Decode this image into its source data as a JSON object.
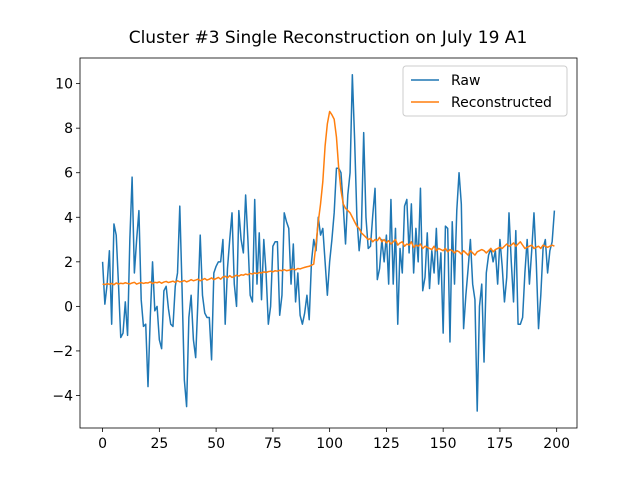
{
  "chart_data": {
    "type": "line",
    "title": "Cluster #3 Single Reconstruction on July 19 A1",
    "x": [
      0,
      1,
      2,
      3,
      4,
      5,
      6,
      7,
      8,
      9,
      10,
      11,
      12,
      13,
      14,
      15,
      16,
      17,
      18,
      19,
      20,
      21,
      22,
      23,
      24,
      25,
      26,
      27,
      28,
      29,
      30,
      31,
      32,
      33,
      34,
      35,
      36,
      37,
      38,
      39,
      40,
      41,
      42,
      43,
      44,
      45,
      46,
      47,
      48,
      49,
      50,
      51,
      52,
      53,
      54,
      55,
      56,
      57,
      58,
      59,
      60,
      61,
      62,
      63,
      64,
      65,
      66,
      67,
      68,
      69,
      70,
      71,
      72,
      73,
      74,
      75,
      76,
      77,
      78,
      79,
      80,
      81,
      82,
      83,
      84,
      85,
      86,
      87,
      88,
      89,
      90,
      91,
      92,
      93,
      94,
      95,
      96,
      97,
      98,
      99,
      100,
      101,
      102,
      103,
      104,
      105,
      106,
      107,
      108,
      109,
      110,
      111,
      112,
      113,
      114,
      115,
      116,
      117,
      118,
      119,
      120,
      121,
      122,
      123,
      124,
      125,
      126,
      127,
      128,
      129,
      130,
      131,
      132,
      133,
      134,
      135,
      136,
      137,
      138,
      139,
      140,
      141,
      142,
      143,
      144,
      145,
      146,
      147,
      148,
      149,
      150,
      151,
      152,
      153,
      154,
      155,
      156,
      157,
      158,
      159,
      160,
      161,
      162,
      163,
      164,
      165,
      166,
      167,
      168,
      169,
      170,
      171,
      172,
      173,
      174,
      175,
      176,
      177,
      178,
      179,
      180,
      181,
      182,
      183,
      184,
      185,
      186,
      187,
      188,
      189,
      190,
      191,
      192,
      193,
      194,
      195,
      196,
      197,
      198,
      199
    ],
    "series": [
      {
        "name": "Raw",
        "color": "#1f77b4",
        "values": [
          2.0,
          0.1,
          1.0,
          2.5,
          -0.8,
          3.7,
          3.2,
          1.0,
          -1.4,
          -1.2,
          0.2,
          -1.3,
          3.0,
          5.8,
          1.5,
          3.0,
          4.3,
          0.3,
          -0.9,
          -0.8,
          -3.6,
          -0.5,
          2.0,
          -0.2,
          0.0,
          -1.5,
          -1.9,
          0.7,
          0.9,
          -0.1,
          -0.8,
          -0.9,
          0.9,
          1.5,
          4.5,
          0.8,
          -3.3,
          -4.5,
          -0.5,
          0.5,
          -1.5,
          -2.3,
          0.3,
          3.2,
          0.5,
          -0.3,
          -0.5,
          -0.5,
          -2.4,
          1.5,
          1.8,
          2.0,
          2.0,
          3.0,
          -0.8,
          1.7,
          3.0,
          4.2,
          1.0,
          0.0,
          4.3,
          3.0,
          2.4,
          5.0,
          3.0,
          0.5,
          0.2,
          4.8,
          1.0,
          3.3,
          0.3,
          3.0,
          1.5,
          -0.8,
          0.0,
          2.7,
          2.9,
          2.9,
          -0.4,
          0.5,
          4.2,
          3.8,
          3.5,
          1.0,
          2.8,
          0.2,
          1.5,
          -0.4,
          -0.8,
          -0.3,
          0.5,
          -0.6,
          2.0,
          3.0,
          2.5,
          4.0,
          3.2,
          3.5,
          2.0,
          0.5,
          2.0,
          3.0,
          4.2,
          6.2,
          6.2,
          6.0,
          4.5,
          2.8,
          5.0,
          6.0,
          10.4,
          7.5,
          4.0,
          2.5,
          3.5,
          7.8,
          4.0,
          2.6,
          2.7,
          4.1,
          5.3,
          1.2,
          1.7,
          3.0,
          2.0,
          3.2,
          1.0,
          4.8,
          1.0,
          3.5,
          -0.8,
          2.6,
          1.5,
          4.5,
          4.8,
          2.4,
          4.6,
          1.5,
          3.5,
          2.0,
          5.3,
          0.7,
          1.3,
          3.3,
          0.8,
          2.5,
          1.5,
          3.5,
          1.0,
          2.4,
          -1.2,
          3.6,
          3.5,
          -1.6,
          3.8,
          1.0,
          4.3,
          6.0,
          4.6,
          -1.0,
          0.5,
          1.7,
          3.0,
          1.0,
          0.3,
          -4.7,
          0.0,
          1.0,
          -2.5,
          1.5,
          2.3,
          2.6,
          2.0,
          2.5,
          1.0,
          3.0,
          1.8,
          0.2,
          1.3,
          4.2,
          2.0,
          0.2,
          3.4,
          -0.8,
          -0.8,
          -0.5,
          1.5,
          3.0,
          1.0,
          2.5,
          4.2,
          2.0,
          -1.0,
          0.5,
          2.6,
          3.0,
          1.5,
          2.5,
          2.9,
          4.3
        ]
      },
      {
        "name": "Reconstructed",
        "color": "#ff7f0e",
        "values": [
          1.0,
          0.98,
          1.02,
          0.99,
          1.03,
          0.97,
          1.05,
          1.0,
          1.04,
          1.02,
          1.06,
          1.03,
          1.01,
          1.05,
          1.08,
          1.0,
          1.04,
          1.07,
          1.03,
          1.06,
          1.05,
          1.1,
          1.02,
          1.08,
          1.06,
          1.1,
          1.04,
          1.09,
          1.12,
          1.07,
          1.1,
          1.13,
          1.08,
          1.15,
          1.1,
          1.12,
          1.16,
          1.1,
          1.14,
          1.2,
          1.15,
          1.18,
          1.22,
          1.15,
          1.2,
          1.25,
          1.18,
          1.22,
          1.28,
          1.2,
          1.25,
          1.3,
          1.22,
          1.32,
          1.35,
          1.28,
          1.38,
          1.3,
          1.35,
          1.4,
          1.36,
          1.42,
          1.4,
          1.45,
          1.42,
          1.48,
          1.45,
          1.5,
          1.47,
          1.52,
          1.5,
          1.55,
          1.52,
          1.56,
          1.58,
          1.55,
          1.6,
          1.58,
          1.62,
          1.6,
          1.65,
          1.6,
          1.62,
          1.66,
          1.68,
          1.64,
          1.7,
          1.68,
          1.72,
          1.75,
          1.78,
          1.8,
          1.85,
          1.9,
          2.8,
          3.8,
          4.6,
          5.6,
          7.2,
          8.2,
          8.75,
          8.6,
          8.4,
          7.6,
          6.2,
          5.2,
          4.6,
          4.4,
          4.3,
          4.2,
          4.0,
          3.8,
          3.6,
          3.5,
          3.3,
          3.2,
          3.1,
          3.0,
          3.05,
          2.9,
          3.0,
          2.95,
          3.1,
          2.9,
          3.0,
          2.85,
          2.95,
          2.8,
          2.9,
          3.0,
          2.75,
          2.85,
          2.9,
          2.7,
          2.8,
          2.75,
          2.9,
          2.65,
          2.75,
          2.7,
          2.8,
          2.6,
          2.7,
          2.65,
          2.6,
          2.55,
          2.7,
          2.5,
          2.6,
          2.55,
          2.5,
          2.6,
          2.45,
          2.55,
          2.5,
          2.4,
          2.5,
          2.45,
          2.35,
          2.5,
          2.4,
          2.3,
          2.5,
          2.4,
          2.3,
          2.45,
          2.5,
          2.55,
          2.5,
          2.4,
          2.5,
          2.6,
          2.45,
          2.55,
          2.6,
          2.65,
          2.6,
          2.7,
          2.8,
          2.7,
          2.75,
          2.85,
          2.7,
          2.8,
          2.9,
          2.75,
          2.6,
          2.65,
          2.7,
          2.75,
          2.6,
          2.65,
          2.7,
          2.6,
          2.75,
          2.7,
          2.65,
          2.7,
          2.75,
          2.7
        ]
      }
    ],
    "xlim": [
      -9.95,
      208.95
    ],
    "xticks": [
      0,
      25,
      50,
      75,
      100,
      125,
      150,
      175,
      200
    ],
    "ylim": [
      -5.46,
      11.15
    ],
    "yticks": [
      {
        "value": -4,
        "label": "−4"
      },
      {
        "value": -2,
        "label": "−2"
      },
      0,
      2,
      4,
      6,
      8,
      10
    ],
    "legend": "upper right"
  }
}
